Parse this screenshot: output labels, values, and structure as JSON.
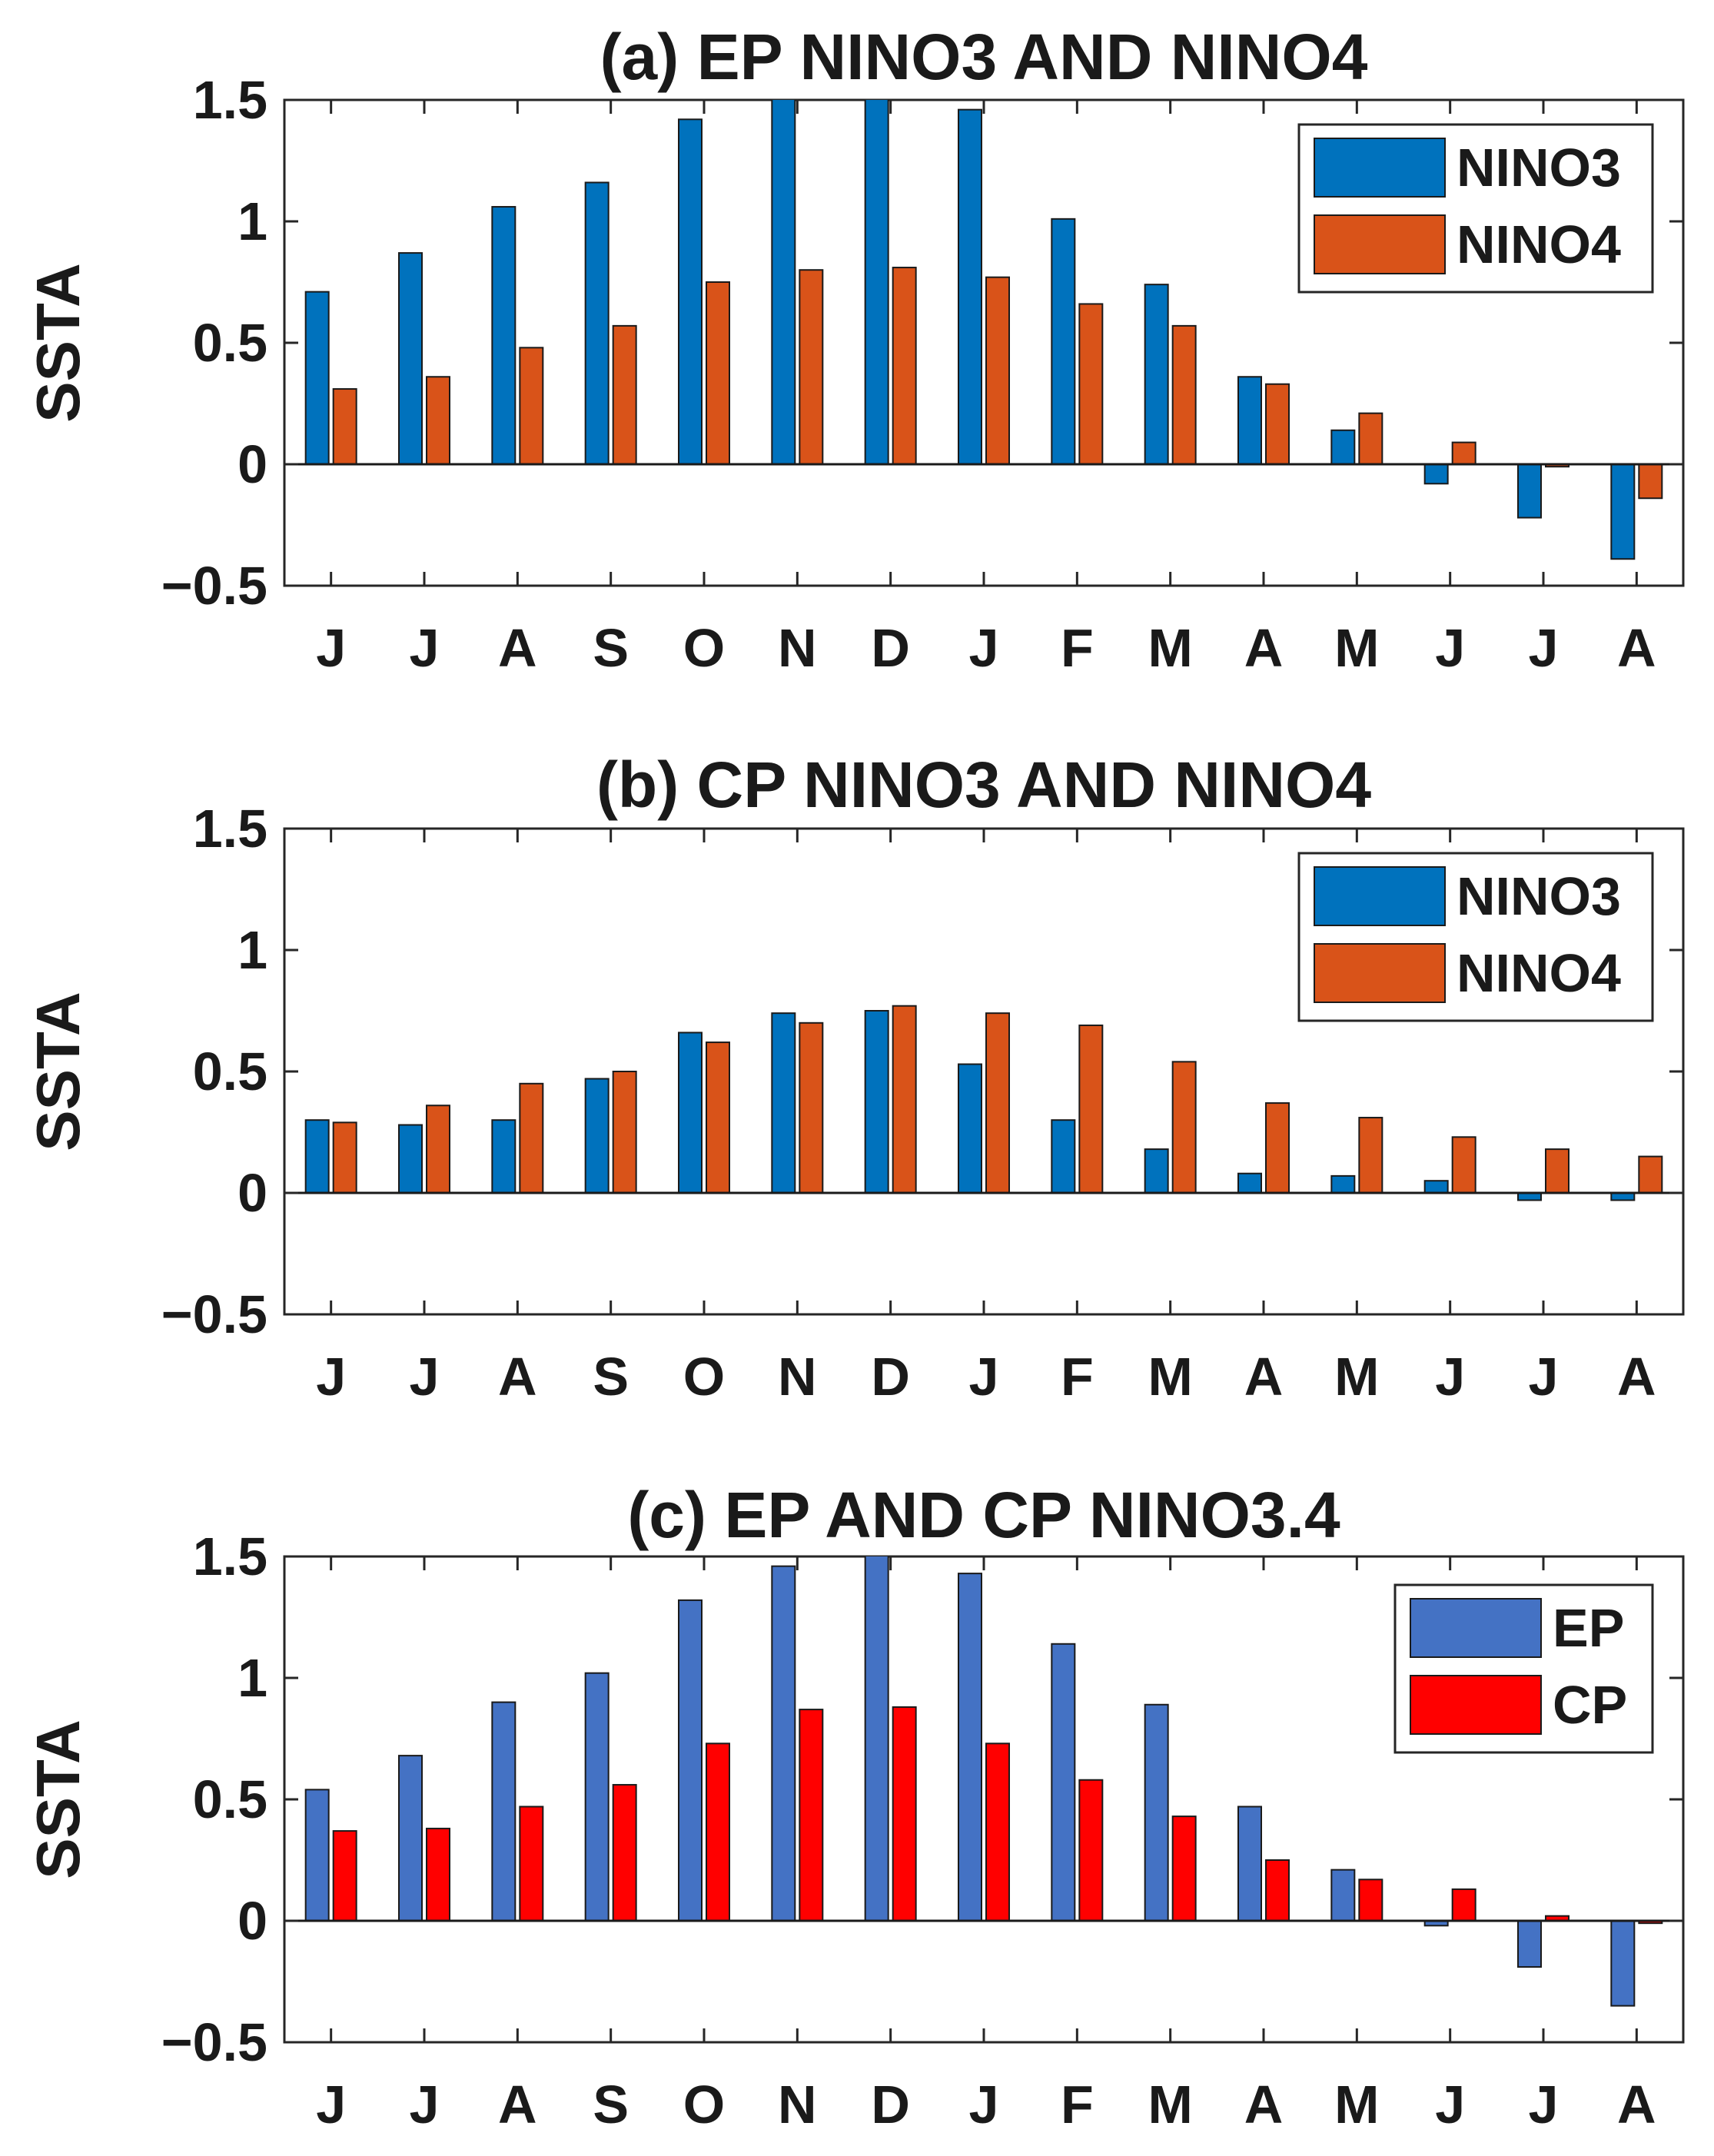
{
  "chart_data": [
    {
      "type": "bar",
      "title": "(a) EP NINO3 AND NINO4",
      "xlabel": "",
      "ylabel": "SSTA",
      "ylim": [
        -0.5,
        1.5
      ],
      "yticks": [
        1.5,
        1,
        0.5,
        0,
        -0.5
      ],
      "ytick_labels": [
        "1.5",
        "1",
        "0.5",
        "0",
        "−0.5"
      ],
      "categories": [
        "J",
        "J",
        "A",
        "S",
        "O",
        "N",
        "D",
        "J",
        "F",
        "M",
        "A",
        "M",
        "J",
        "J",
        "A"
      ],
      "legend_position": "top-right",
      "series": [
        {
          "name": "NINO3",
          "color": "#0072BD",
          "values": [
            0.71,
            0.87,
            1.06,
            1.16,
            1.42,
            1.52,
            1.52,
            1.46,
            1.01,
            0.74,
            0.36,
            0.14,
            -0.08,
            -0.22,
            -0.39
          ]
        },
        {
          "name": "NINO4",
          "color": "#D95319",
          "values": [
            0.31,
            0.36,
            0.48,
            0.57,
            0.75,
            0.8,
            0.81,
            0.77,
            0.66,
            0.57,
            0.33,
            0.21,
            0.09,
            -0.01,
            -0.14
          ]
        }
      ]
    },
    {
      "type": "bar",
      "title": "(b) CP NINO3 AND NINO4",
      "xlabel": "",
      "ylabel": "SSTA",
      "ylim": [
        -0.5,
        1.5
      ],
      "yticks": [
        1.5,
        1,
        0.5,
        0,
        -0.5
      ],
      "ytick_labels": [
        "1.5",
        "1",
        "0.5",
        "0",
        "−0.5"
      ],
      "categories": [
        "J",
        "J",
        "A",
        "S",
        "O",
        "N",
        "D",
        "J",
        "F",
        "M",
        "A",
        "M",
        "J",
        "J",
        "A"
      ],
      "legend_position": "top-right",
      "series": [
        {
          "name": "NINO3",
          "color": "#0072BD",
          "values": [
            0.3,
            0.28,
            0.3,
            0.47,
            0.66,
            0.74,
            0.75,
            0.53,
            0.3,
            0.18,
            0.08,
            0.07,
            0.05,
            -0.03,
            -0.03
          ]
        },
        {
          "name": "NINO4",
          "color": "#D95319",
          "values": [
            0.29,
            0.36,
            0.45,
            0.5,
            0.62,
            0.7,
            0.77,
            0.74,
            0.69,
            0.54,
            0.37,
            0.31,
            0.23,
            0.18,
            0.15
          ]
        }
      ]
    },
    {
      "type": "bar",
      "title": "(c) EP AND CP NINO3.4",
      "xlabel": "",
      "ylabel": "SSTA",
      "ylim": [
        -0.5,
        1.5
      ],
      "yticks": [
        1.5,
        1,
        0.5,
        0,
        -0.5
      ],
      "ytick_labels": [
        "1.5",
        "1",
        "0.5",
        "0",
        "−0.5"
      ],
      "categories": [
        "J",
        "J",
        "A",
        "S",
        "O",
        "N",
        "D",
        "J",
        "F",
        "M",
        "A",
        "M",
        "J",
        "J",
        "A"
      ],
      "legend_position": "top-right",
      "series": [
        {
          "name": "EP",
          "color": "#4472C4",
          "values": [
            0.54,
            0.68,
            0.9,
            1.02,
            1.32,
            1.46,
            1.52,
            1.43,
            1.14,
            0.89,
            0.47,
            0.21,
            -0.02,
            -0.19,
            -0.35
          ]
        },
        {
          "name": "CP",
          "color": "#FF0000",
          "values": [
            0.37,
            0.38,
            0.47,
            0.56,
            0.73,
            0.87,
            0.88,
            0.73,
            0.58,
            0.43,
            0.25,
            0.17,
            0.13,
            0.02,
            -0.01
          ]
        }
      ]
    }
  ]
}
